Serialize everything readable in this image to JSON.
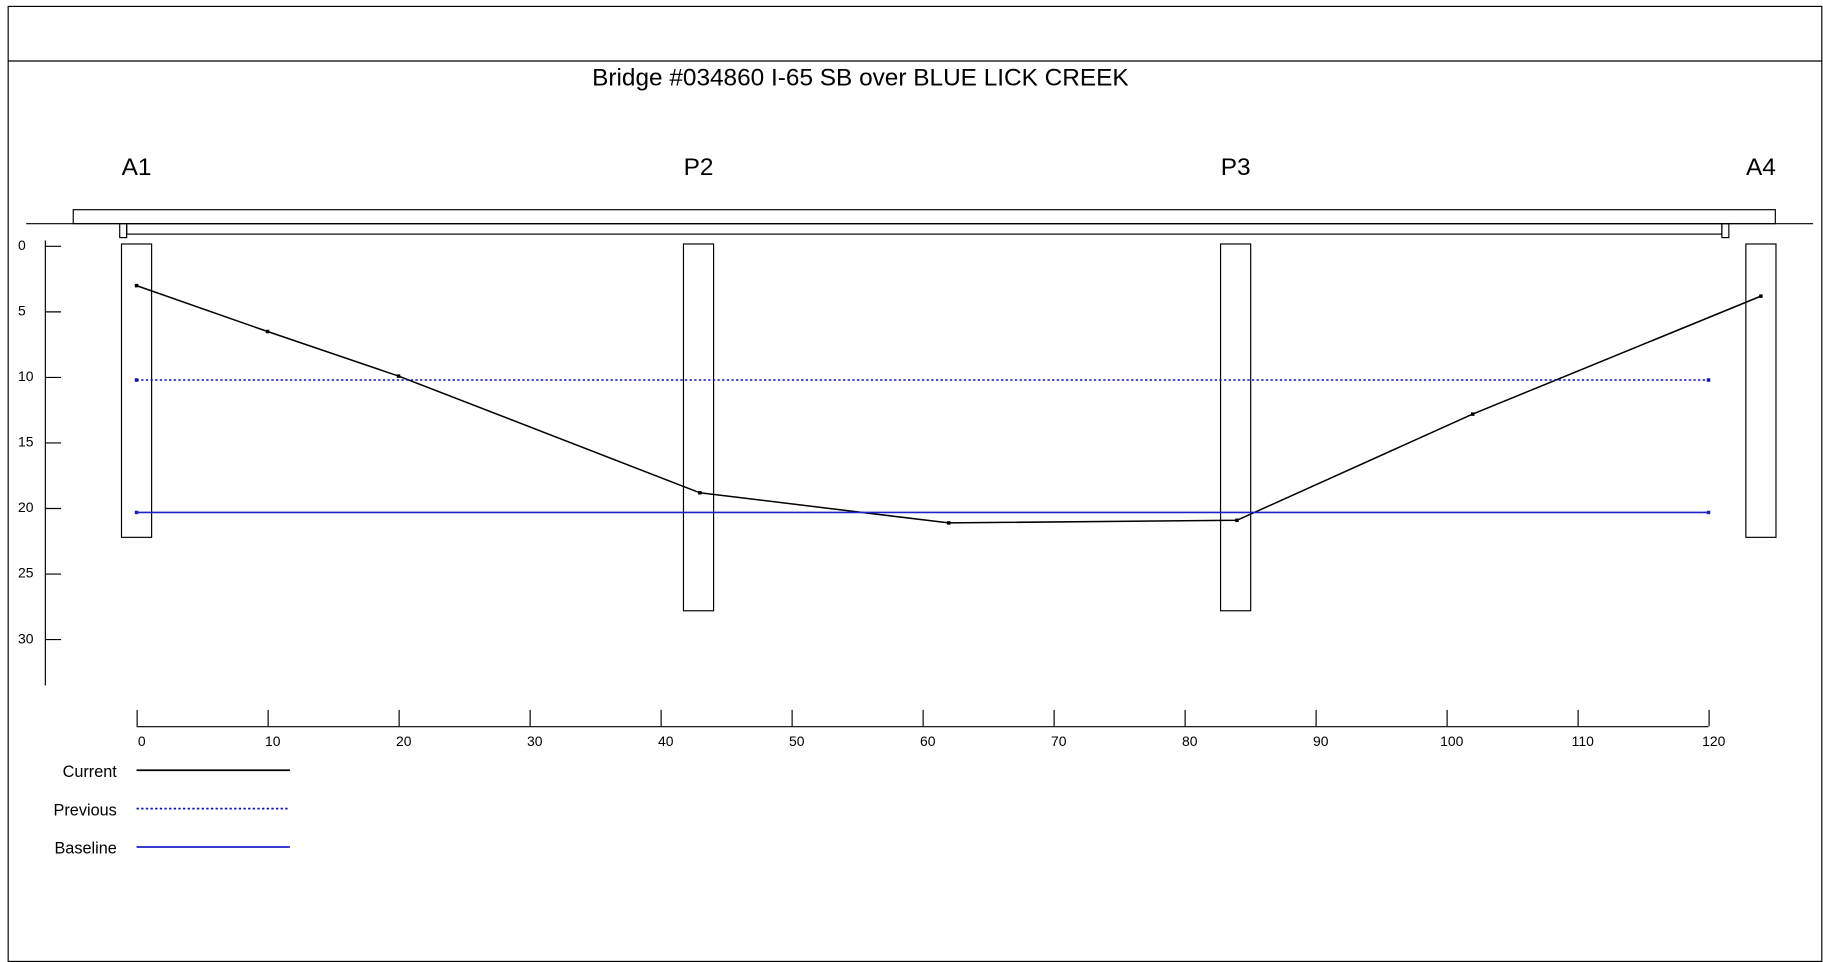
{
  "chart_data": {
    "type": "line",
    "title": "Bridge #034860 I-65 SB over BLUE LICK CREEK",
    "xlim": [
      0,
      120
    ],
    "xticks": [
      0,
      10,
      20,
      30,
      40,
      50,
      60,
      70,
      80,
      90,
      100,
      110,
      120
    ],
    "ylim": [
      0,
      33.5
    ],
    "yticks": [
      0,
      5,
      10,
      15,
      20,
      25,
      30
    ],
    "y_inverted": true,
    "piers": [
      {
        "name": "A1",
        "x": 0,
        "width": 2.3,
        "bottom": 22.2
      },
      {
        "name": "P2",
        "x": 42.9,
        "width": 2.3,
        "bottom": 27.8
      },
      {
        "name": "P3",
        "x": 83.9,
        "width": 2.3,
        "bottom": 27.8
      },
      {
        "name": "A4",
        "x": 124,
        "width": 2.3,
        "bottom": 22.2
      }
    ],
    "series": [
      {
        "name": "Current",
        "color": "#000000",
        "dash": "none",
        "x": [
          0,
          10,
          20,
          43,
          62,
          84,
          102,
          124
        ],
        "y": [
          3,
          6.5,
          9.9,
          18.8,
          21.1,
          20.9,
          12.8,
          3.8
        ]
      },
      {
        "name": "Previous",
        "color": "#1010c0",
        "dash": "2 2",
        "x": [
          0,
          120
        ],
        "y": [
          10.2,
          10.2
        ]
      },
      {
        "name": "Baseline",
        "color": "#2020c8",
        "dash": "none",
        "x": [
          0,
          120
        ],
        "y": [
          20.3,
          20.3
        ]
      }
    ]
  }
}
